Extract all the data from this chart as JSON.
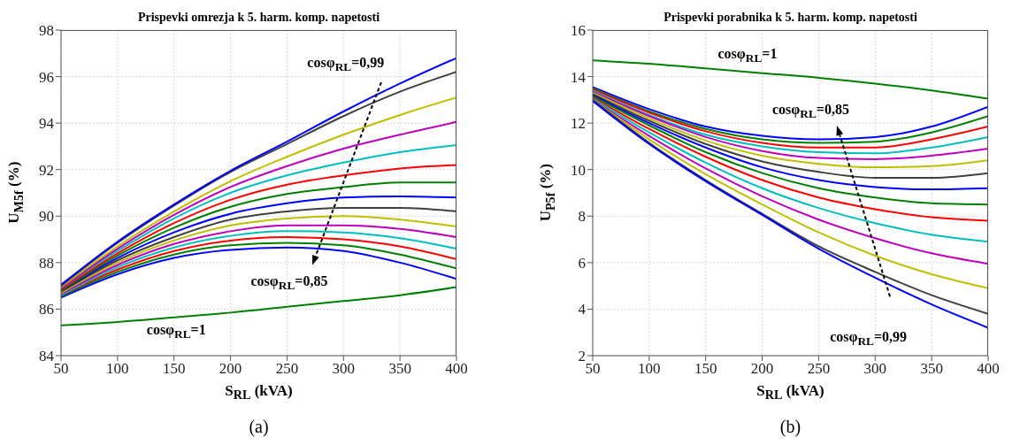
{
  "chart_data": [
    {
      "type": "line",
      "title": "Prispevki omrezja k 5. harm. komp. napetosti",
      "xlabel": "S$_{RL}$ (kVA)",
      "ylabel": "U$_{M5f}$ (%)",
      "x": [
        50,
        100,
        150,
        200,
        250,
        300,
        350,
        400
      ],
      "xlim": [
        50,
        400
      ],
      "xticks": [
        50,
        100,
        150,
        200,
        250,
        300,
        350,
        400
      ],
      "ylim": [
        84,
        98
      ],
      "yticks": [
        84,
        86,
        88,
        90,
        92,
        94,
        96,
        98
      ],
      "grid": true,
      "series": [
        {
          "color": "#0000ff",
          "values": [
            86.5,
            87.5,
            88.2,
            88.55,
            88.65,
            88.5,
            88.0,
            87.3
          ]
        },
        {
          "color": "#008000",
          "values": [
            86.55,
            87.6,
            88.35,
            88.75,
            88.85,
            88.75,
            88.35,
            87.75
          ]
        },
        {
          "color": "#ff0000",
          "values": [
            86.6,
            87.7,
            88.5,
            88.95,
            89.1,
            89.0,
            88.7,
            88.15
          ]
        },
        {
          "color": "#00bfbf",
          "values": [
            86.6,
            87.8,
            88.65,
            89.15,
            89.35,
            89.3,
            89.05,
            88.6
          ]
        },
        {
          "color": "#bf00bf",
          "values": [
            86.65,
            87.9,
            88.8,
            89.35,
            89.6,
            89.6,
            89.45,
            89.1
          ]
        },
        {
          "color": "#bfbf00",
          "values": [
            86.7,
            88.0,
            88.95,
            89.6,
            89.9,
            90.0,
            89.85,
            89.55
          ]
        },
        {
          "color": "#404040",
          "values": [
            86.75,
            88.1,
            89.1,
            89.85,
            90.2,
            90.35,
            90.35,
            90.2
          ]
        },
        {
          "color": "#0000ff",
          "values": [
            86.8,
            88.2,
            89.3,
            90.1,
            90.55,
            90.8,
            90.85,
            90.8
          ]
        },
        {
          "color": "#008000",
          "values": [
            86.8,
            88.3,
            89.5,
            90.4,
            90.95,
            91.25,
            91.45,
            91.45
          ]
        },
        {
          "color": "#ff0000",
          "values": [
            86.85,
            88.4,
            89.7,
            90.7,
            91.35,
            91.75,
            92.05,
            92.2
          ]
        },
        {
          "color": "#00bfbf",
          "values": [
            86.9,
            88.5,
            89.9,
            91.0,
            91.75,
            92.3,
            92.75,
            93.05
          ]
        },
        {
          "color": "#bf00bf",
          "values": [
            86.9,
            88.6,
            90.05,
            91.25,
            92.15,
            92.9,
            93.5,
            94.05
          ]
        },
        {
          "color": "#bfbf00",
          "values": [
            86.95,
            88.7,
            90.2,
            91.5,
            92.55,
            93.5,
            94.35,
            95.1
          ]
        },
        {
          "color": "#404040",
          "values": [
            87.0,
            88.85,
            90.45,
            91.9,
            93.1,
            94.3,
            95.35,
            96.2
          ]
        },
        {
          "color": "#0000ff",
          "values": [
            87.05,
            88.9,
            90.5,
            91.95,
            93.2,
            94.5,
            95.7,
            96.8
          ]
        },
        {
          "color": "#008000",
          "values": [
            85.3,
            85.45,
            85.65,
            85.85,
            86.1,
            86.35,
            86.6,
            86.95
          ]
        }
      ],
      "annotations": [
        "cosφ$_{RL}$=0,99",
        "cosφ$_{RL}$=0,85",
        "cosφ$_{RL}$=1",
        "(a)"
      ]
    },
    {
      "type": "line",
      "title": "Prispevki porabnika k 5. harm. komp. napetosti",
      "xlabel": "S$_{RL}$ (kVA)",
      "ylabel": "U$_{P5f}$ (%)",
      "x": [
        50,
        100,
        150,
        200,
        250,
        300,
        350,
        400
      ],
      "xlim": [
        50,
        400
      ],
      "xticks": [
        50,
        100,
        150,
        200,
        250,
        300,
        350,
        400
      ],
      "ylim": [
        2,
        16
      ],
      "yticks": [
        2,
        4,
        6,
        8,
        10,
        12,
        14,
        16
      ],
      "grid": true,
      "series": [
        {
          "color": "#0000ff",
          "values": [
            13.55,
            12.6,
            11.85,
            11.45,
            11.3,
            11.4,
            11.85,
            12.7
          ]
        },
        {
          "color": "#008000",
          "values": [
            13.5,
            12.5,
            11.75,
            11.3,
            11.15,
            11.2,
            11.6,
            12.3
          ]
        },
        {
          "color": "#ff0000",
          "values": [
            13.45,
            12.45,
            11.65,
            11.15,
            10.95,
            10.95,
            11.3,
            11.85
          ]
        },
        {
          "color": "#00bfbf",
          "values": [
            13.4,
            12.35,
            11.5,
            11.0,
            10.75,
            10.7,
            10.95,
            11.4
          ]
        },
        {
          "color": "#bf00bf",
          "values": [
            13.35,
            12.3,
            11.4,
            10.8,
            10.5,
            10.45,
            10.6,
            10.9
          ]
        },
        {
          "color": "#bfbf00",
          "values": [
            13.3,
            12.2,
            11.25,
            10.6,
            10.25,
            10.1,
            10.15,
            10.4
          ]
        },
        {
          "color": "#404040",
          "values": [
            13.25,
            12.1,
            11.1,
            10.35,
            9.9,
            9.65,
            9.65,
            9.85
          ]
        },
        {
          "color": "#0000ff",
          "values": [
            13.2,
            12.0,
            10.95,
            10.1,
            9.55,
            9.25,
            9.15,
            9.2
          ]
        },
        {
          "color": "#008000",
          "values": [
            13.15,
            11.9,
            10.75,
            9.85,
            9.2,
            8.8,
            8.55,
            8.5
          ]
        },
        {
          "color": "#ff0000",
          "values": [
            13.1,
            11.75,
            10.55,
            9.55,
            8.8,
            8.3,
            7.95,
            7.8
          ]
        },
        {
          "color": "#00bfbf",
          "values": [
            13.05,
            11.6,
            10.3,
            9.2,
            8.35,
            7.7,
            7.2,
            6.9
          ]
        },
        {
          "color": "#bf00bf",
          "values": [
            13.0,
            11.45,
            10.05,
            8.85,
            7.85,
            7.05,
            6.4,
            5.95
          ]
        },
        {
          "color": "#bfbf00",
          "values": [
            13.0,
            11.3,
            9.8,
            8.5,
            7.3,
            6.3,
            5.5,
            4.9
          ]
        },
        {
          "color": "#404040",
          "values": [
            13.0,
            11.15,
            9.55,
            8.1,
            6.7,
            5.6,
            4.6,
            3.8
          ]
        },
        {
          "color": "#0000ff",
          "values": [
            12.95,
            11.1,
            9.5,
            8.05,
            6.6,
            5.35,
            4.2,
            3.2
          ]
        },
        {
          "color": "#008000",
          "values": [
            14.7,
            14.55,
            14.35,
            14.15,
            13.95,
            13.7,
            13.4,
            13.05
          ]
        }
      ],
      "annotations": [
        "cosφ$_{RL}$=1",
        "cosφ$_{RL}$=0,85",
        "cosφ$_{RL}$=0,99",
        "(b)"
      ]
    }
  ]
}
